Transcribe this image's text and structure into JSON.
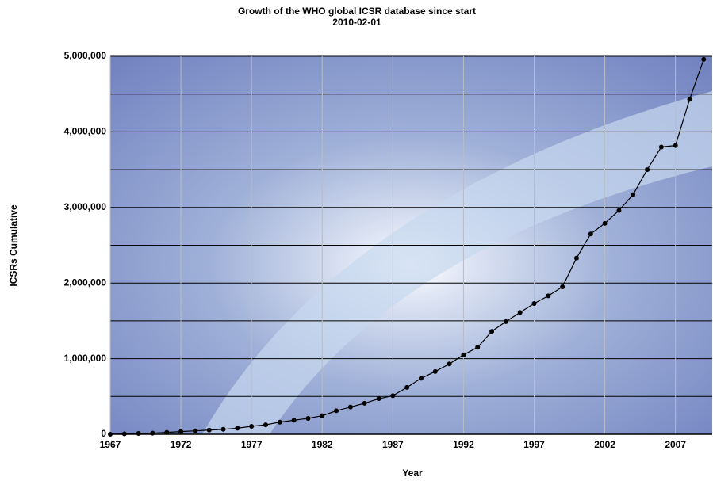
{
  "chart_data": {
    "type": "line",
    "title": "Growth of the WHO global ICSR database since start",
    "subtitle": "2010-02-01",
    "x_label": "Year",
    "y_label": "ICSRs Cumulative",
    "x": [
      1967,
      1968,
      1969,
      1970,
      1971,
      1972,
      1973,
      1974,
      1975,
      1976,
      1977,
      1978,
      1979,
      1980,
      1981,
      1982,
      1983,
      1984,
      1985,
      1986,
      1987,
      1988,
      1989,
      1990,
      1991,
      1992,
      1993,
      1994,
      1995,
      1996,
      1997,
      1998,
      1999,
      2000,
      2001,
      2002,
      2003,
      2004,
      2005,
      2006,
      2007,
      2008,
      2009
    ],
    "series": [
      {
        "name": "ICSRs Cumulative",
        "color": "#000000",
        "values": [
          0,
          5000,
          10000,
          15000,
          25000,
          35000,
          45000,
          55000,
          65000,
          80000,
          105000,
          125000,
          160000,
          185000,
          210000,
          245000,
          310000,
          360000,
          410000,
          470000,
          510000,
          620000,
          740000,
          830000,
          930000,
          1050000,
          1150000,
          1360000,
          1490000,
          1610000,
          1730000,
          1830000,
          1950000,
          2330000,
          2650000,
          2790000,
          2960000,
          3170000,
          3500000,
          3800000,
          3820000,
          4430000,
          4960000
        ]
      }
    ],
    "xlim": [
      1967,
      2009.6
    ],
    "xticks": [
      1967,
      1972,
      1977,
      1982,
      1987,
      1992,
      1997,
      2002,
      2007
    ],
    "ylim": [
      0,
      5000000
    ],
    "yticks": [
      0,
      {
        "value": 1000000,
        "label": "1,000,000"
      },
      {
        "value": 2000000,
        "label": "2,000,000"
      },
      {
        "value": 3000000,
        "label": "3,000,000"
      },
      {
        "value": 4000000,
        "label": "4,000,000"
      },
      {
        "value": 5000000,
        "label": "5,000,000"
      }
    ],
    "y_minor_gridlines": [
      500000,
      1500000,
      2500000,
      3500000,
      4500000
    ],
    "grid": true
  }
}
